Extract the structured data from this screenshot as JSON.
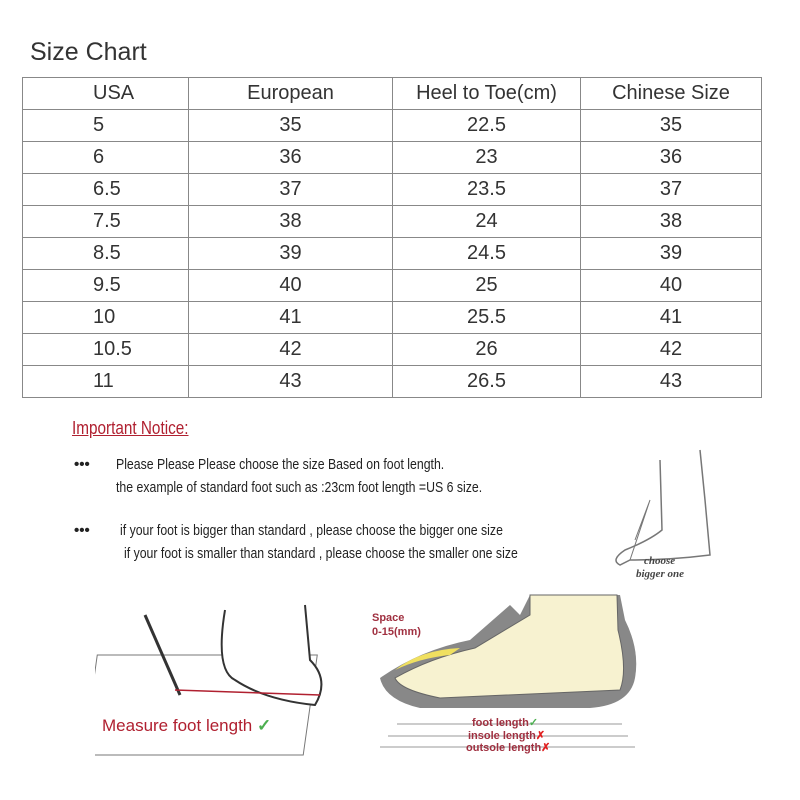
{
  "title": "Size Chart",
  "table": {
    "headers": [
      "USA",
      "European",
      "Heel to Toe(cm)",
      "Chinese Size"
    ],
    "rows": [
      [
        "5",
        "35",
        "22.5",
        "35"
      ],
      [
        "6",
        "36",
        "23",
        "36"
      ],
      [
        "6.5",
        "37",
        "23.5",
        "37"
      ],
      [
        "7.5",
        "38",
        "24",
        "38"
      ],
      [
        "8.5",
        "39",
        "24.5",
        "39"
      ],
      [
        "9.5",
        "40",
        "25",
        "40"
      ],
      [
        "10",
        "41",
        "25.5",
        "41"
      ],
      [
        "10.5",
        "42",
        "26",
        "42"
      ],
      [
        "11",
        "43",
        "26.5",
        "43"
      ]
    ]
  },
  "notice": {
    "title": "Important Notice:",
    "bullet": "•••",
    "line1": "Please Please Please choose the size Based on foot length.",
    "line2": "the example of standard foot such as :23cm foot length =US 6 size.",
    "line3": "if your foot is bigger than standard , please choose the bigger one size",
    "line4": "if your foot is smaller than standard , please choose the smaller one size",
    "choose1": "choose",
    "choose2": "bigger one"
  },
  "measure": {
    "label": "Measure foot length",
    "check": "✓"
  },
  "shoe": {
    "space1": "Space",
    "space2": "0-15(mm)",
    "foot": "foot length",
    "insole": "insole length",
    "outsole": "outsole length",
    "ok": "✓",
    "bad": "✗"
  },
  "colors": {
    "accent": "#b02030",
    "check": "#4caf50",
    "insole": "#f0e060",
    "sole": "#777777"
  }
}
